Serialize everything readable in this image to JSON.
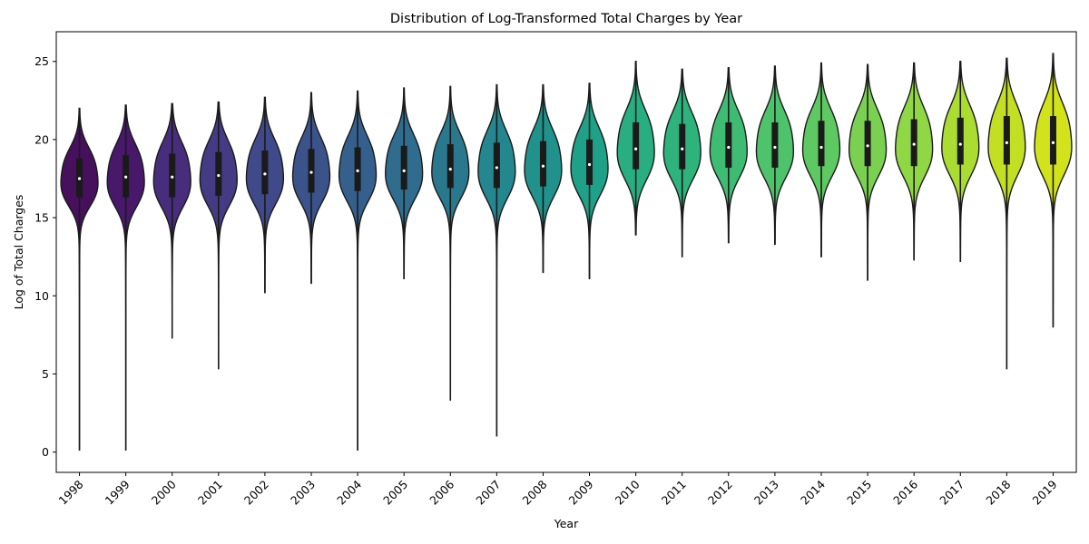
{
  "chart_data": {
    "type": "violin",
    "title": "Distribution of Log-Transformed Total Charges by Year",
    "xlabel": "Year",
    "ylabel": "Log of Total Charges",
    "ylim": [
      -1.3,
      26.9
    ],
    "yticks": [
      0,
      5,
      10,
      15,
      20,
      25
    ],
    "grid": false,
    "categories": [
      "1998",
      "1999",
      "2000",
      "2001",
      "2002",
      "2003",
      "2004",
      "2005",
      "2006",
      "2007",
      "2008",
      "2009",
      "2010",
      "2011",
      "2012",
      "2013",
      "2014",
      "2015",
      "2016",
      "2017",
      "2018",
      "2019"
    ],
    "colors": [
      "#46105d",
      "#48196b",
      "#472d7b",
      "#443b84",
      "#404a8b",
      "#3b528b",
      "#35608d",
      "#2f6c8e",
      "#2a788e",
      "#24868e",
      "#21918c",
      "#1fa088",
      "#28ae80",
      "#2eb37c",
      "#3fbc73",
      "#4ec36b",
      "#5ec962",
      "#7ad151",
      "#8fd744",
      "#aadc32",
      "#c2df23",
      "#d2e21b"
    ],
    "series": [
      {
        "name": "1998",
        "min": 0.1,
        "q1": 16.3,
        "median": 17.5,
        "q3": 18.8,
        "max": 22.0
      },
      {
        "name": "1999",
        "min": 0.1,
        "q1": 16.3,
        "median": 17.6,
        "q3": 19.0,
        "max": 22.2
      },
      {
        "name": "2000",
        "min": 7.3,
        "q1": 16.3,
        "median": 17.6,
        "q3": 19.1,
        "max": 22.3
      },
      {
        "name": "2001",
        "min": 5.3,
        "q1": 16.4,
        "median": 17.7,
        "q3": 19.2,
        "max": 22.4
      },
      {
        "name": "2002",
        "min": 10.2,
        "q1": 16.5,
        "median": 17.8,
        "q3": 19.3,
        "max": 22.7
      },
      {
        "name": "2003",
        "min": 10.8,
        "q1": 16.6,
        "median": 17.9,
        "q3": 19.4,
        "max": 23.0
      },
      {
        "name": "2004",
        "min": 0.1,
        "q1": 16.7,
        "median": 18.0,
        "q3": 19.5,
        "max": 23.1
      },
      {
        "name": "2005",
        "min": 11.1,
        "q1": 16.8,
        "median": 18.0,
        "q3": 19.6,
        "max": 23.3
      },
      {
        "name": "2006",
        "min": 3.3,
        "q1": 16.9,
        "median": 18.1,
        "q3": 19.7,
        "max": 23.4
      },
      {
        "name": "2007",
        "min": 1.0,
        "q1": 16.9,
        "median": 18.2,
        "q3": 19.8,
        "max": 23.5
      },
      {
        "name": "2008",
        "min": 11.5,
        "q1": 17.0,
        "median": 18.3,
        "q3": 19.9,
        "max": 23.5
      },
      {
        "name": "2009",
        "min": 11.1,
        "q1": 17.1,
        "median": 18.4,
        "q3": 20.0,
        "max": 23.6
      },
      {
        "name": "2010",
        "min": 13.9,
        "q1": 18.1,
        "median": 19.4,
        "q3": 21.1,
        "max": 25.0
      },
      {
        "name": "2011",
        "min": 12.5,
        "q1": 18.1,
        "median": 19.4,
        "q3": 21.0,
        "max": 24.5
      },
      {
        "name": "2012",
        "min": 13.4,
        "q1": 18.2,
        "median": 19.5,
        "q3": 21.1,
        "max": 24.6
      },
      {
        "name": "2013",
        "min": 13.3,
        "q1": 18.2,
        "median": 19.5,
        "q3": 21.1,
        "max": 24.7
      },
      {
        "name": "2014",
        "min": 12.5,
        "q1": 18.3,
        "median": 19.5,
        "q3": 21.2,
        "max": 24.9
      },
      {
        "name": "2015",
        "min": 11.0,
        "q1": 18.3,
        "median": 19.6,
        "q3": 21.2,
        "max": 24.8
      },
      {
        "name": "2016",
        "min": 12.3,
        "q1": 18.3,
        "median": 19.7,
        "q3": 21.3,
        "max": 24.9
      },
      {
        "name": "2017",
        "min": 12.2,
        "q1": 18.4,
        "median": 19.7,
        "q3": 21.4,
        "max": 25.0
      },
      {
        "name": "2018",
        "min": 5.3,
        "q1": 18.4,
        "median": 19.8,
        "q3": 21.5,
        "max": 25.2
      },
      {
        "name": "2019",
        "min": 8.0,
        "q1": 18.4,
        "median": 19.8,
        "q3": 21.5,
        "max": 25.5
      }
    ]
  }
}
